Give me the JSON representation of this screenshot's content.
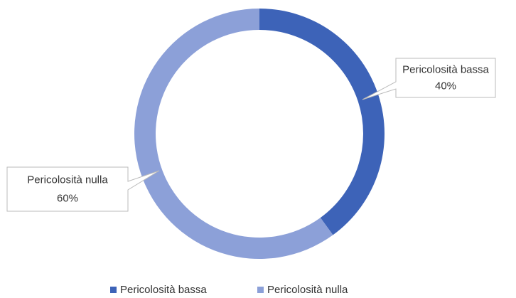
{
  "chart_data": {
    "type": "donut",
    "categories": [
      "Pericolosità bassa",
      "Pericolosità nulla"
    ],
    "values": [
      40,
      60
    ],
    "value_labels": [
      "40%",
      "60%"
    ],
    "colors": [
      "#3d63b8",
      "#8ca0d8"
    ],
    "legend": "bottom"
  }
}
